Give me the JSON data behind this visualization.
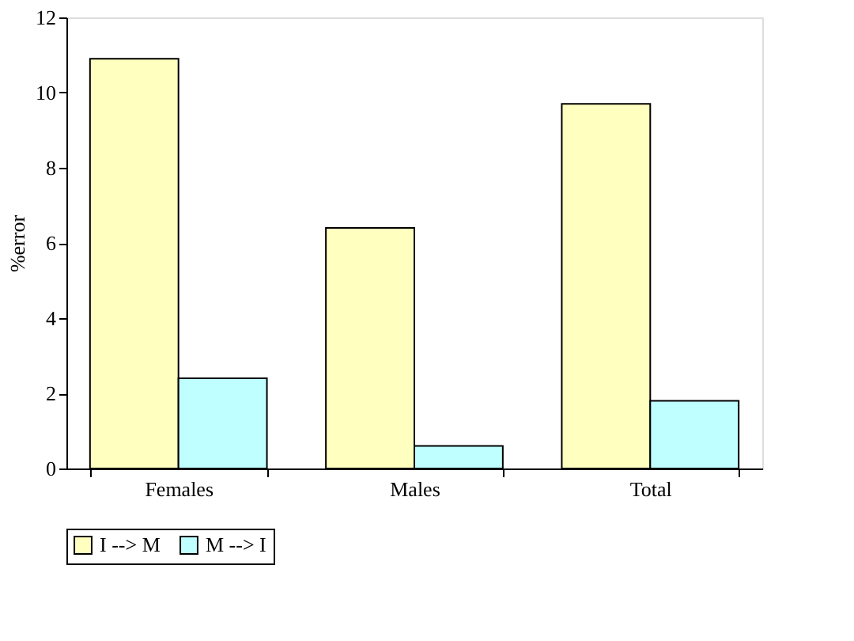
{
  "chart_data": {
    "type": "bar",
    "ylabel": "%error",
    "categories": [
      "Females",
      "Males",
      "Total"
    ],
    "series": [
      {
        "name": "I --> M",
        "color": "#ffffc0",
        "values": [
          10.9,
          6.4,
          9.7
        ]
      },
      {
        "name": "M --> I",
        "color": "#c0ffff",
        "values": [
          2.4,
          0.6,
          1.8
        ]
      }
    ],
    "ylim": [
      0,
      12
    ],
    "yticks": [
      0,
      2,
      4,
      6,
      8,
      10,
      12
    ],
    "grid": false,
    "legend": "bottom"
  }
}
